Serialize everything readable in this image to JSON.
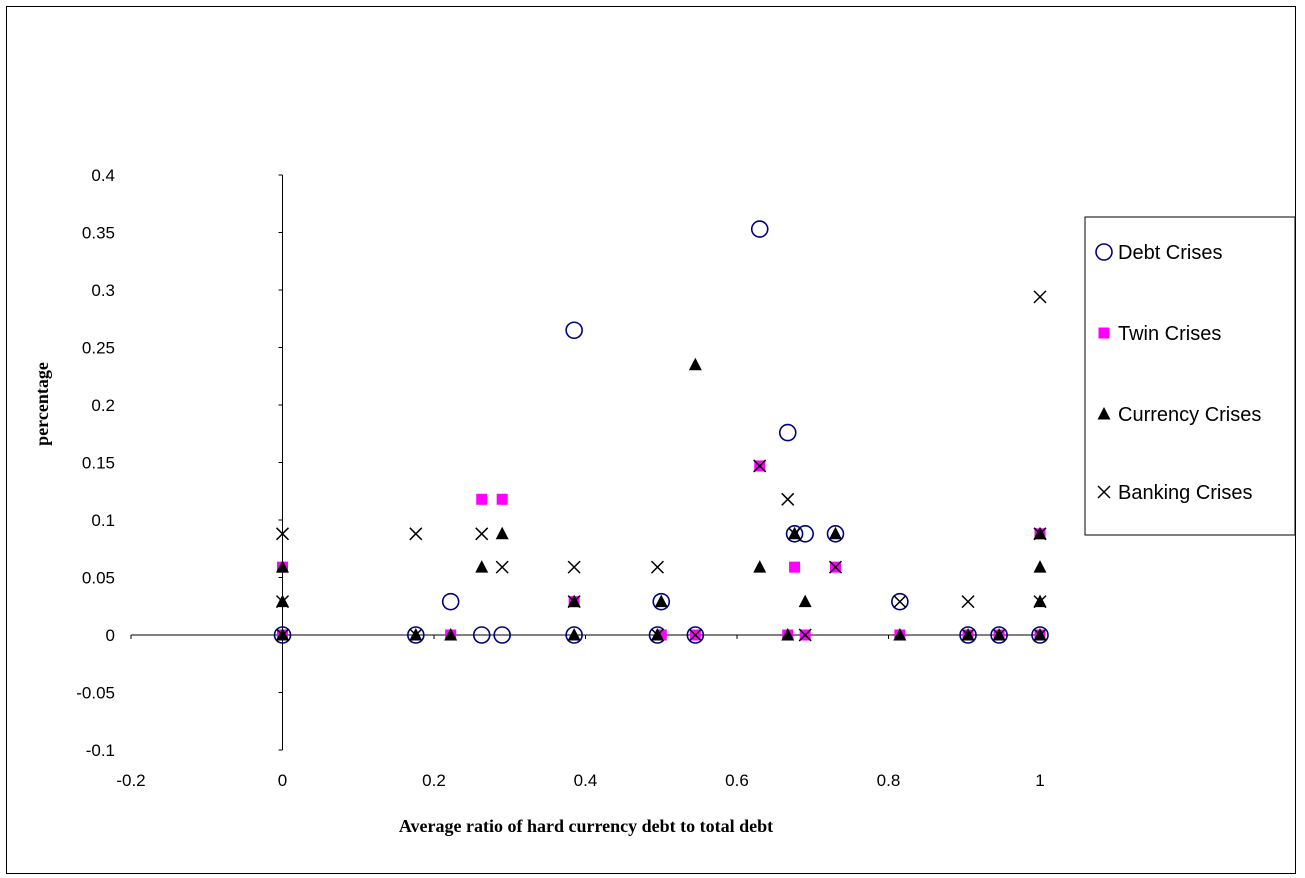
{
  "chart_data": {
    "type": "scatter",
    "title": "",
    "xlabel": "Average ratio of hard currency debt to total debt",
    "ylabel": "percentage",
    "xlim": [
      -0.2,
      1.0
    ],
    "ylim": [
      -0.1,
      0.4
    ],
    "x_ticks": [
      "-0.2",
      "0",
      "0.2",
      "0.4",
      "0.6",
      "0.8",
      "1"
    ],
    "y_ticks": [
      "0.4",
      "0.35",
      "0.3",
      "0.25",
      "0.2",
      "0.15",
      "0.1",
      "0.05",
      "0",
      "-0.05",
      "-0.1"
    ],
    "grid": false,
    "legend_position": "right",
    "series": [
      {
        "name": "Debt Crises",
        "marker": "open-circle",
        "color": "#000080",
        "points": [
          [
            0,
            0
          ],
          [
            0.176,
            0
          ],
          [
            0.222,
            0.029
          ],
          [
            0.263,
            0
          ],
          [
            0.29,
            0
          ],
          [
            0.385,
            0.265
          ],
          [
            0.385,
            0
          ],
          [
            0.495,
            0
          ],
          [
            0.5,
            0.029
          ],
          [
            0.545,
            0
          ],
          [
            0.63,
            0.353
          ],
          [
            0.667,
            0.176
          ],
          [
            0.676,
            0.088
          ],
          [
            0.69,
            0.088
          ],
          [
            0.73,
            0.088
          ],
          [
            0.815,
            0.029
          ],
          [
            0.905,
            0
          ],
          [
            0.946,
            0
          ],
          [
            1.0,
            0
          ]
        ]
      },
      {
        "name": "Twin Crises",
        "marker": "filled-square",
        "color": "#ff00ff",
        "points": [
          [
            0,
            0.059
          ],
          [
            0,
            0
          ],
          [
            0.222,
            0
          ],
          [
            0.263,
            0.118
          ],
          [
            0.29,
            0.118
          ],
          [
            0.385,
            0.029
          ],
          [
            0.5,
            0
          ],
          [
            0.545,
            0
          ],
          [
            0.63,
            0.147
          ],
          [
            0.667,
            0
          ],
          [
            0.676,
            0.059
          ],
          [
            0.69,
            0
          ],
          [
            0.73,
            0.059
          ],
          [
            0.815,
            0
          ],
          [
            0.905,
            0
          ],
          [
            0.946,
            0
          ],
          [
            1.0,
            0.088
          ],
          [
            1.0,
            0
          ]
        ]
      },
      {
        "name": "Currency Crises",
        "marker": "filled-triangle",
        "color": "#000000",
        "points": [
          [
            0,
            0.059
          ],
          [
            0,
            0.029
          ],
          [
            0,
            0
          ],
          [
            0.176,
            0
          ],
          [
            0.222,
            0
          ],
          [
            0.263,
            0.059
          ],
          [
            0.29,
            0.088
          ],
          [
            0.385,
            0.029
          ],
          [
            0.385,
            0
          ],
          [
            0.495,
            0
          ],
          [
            0.5,
            0.029
          ],
          [
            0.545,
            0.235
          ],
          [
            0.63,
            0.059
          ],
          [
            0.667,
            0
          ],
          [
            0.676,
            0.088
          ],
          [
            0.69,
            0.029
          ],
          [
            0.73,
            0.088
          ],
          [
            0.815,
            0
          ],
          [
            0.905,
            0
          ],
          [
            0.946,
            0
          ],
          [
            1.0,
            0.088
          ],
          [
            1.0,
            0.059
          ],
          [
            1.0,
            0.029
          ],
          [
            1.0,
            0
          ]
        ]
      },
      {
        "name": "Banking Crises",
        "marker": "x",
        "color": "#000000",
        "points": [
          [
            0,
            0.088
          ],
          [
            0,
            0.029
          ],
          [
            0,
            0
          ],
          [
            0.176,
            0.088
          ],
          [
            0.176,
            0
          ],
          [
            0.263,
            0.088
          ],
          [
            0.29,
            0.059
          ],
          [
            0.385,
            0.059
          ],
          [
            0.385,
            0.029
          ],
          [
            0.495,
            0.059
          ],
          [
            0.495,
            0
          ],
          [
            0.545,
            0
          ],
          [
            0.63,
            0.147
          ],
          [
            0.667,
            0.118
          ],
          [
            0.676,
            0.088
          ],
          [
            0.69,
            0
          ],
          [
            0.73,
            0.059
          ],
          [
            0.815,
            0.029
          ],
          [
            0.905,
            0.029
          ],
          [
            0.905,
            0
          ],
          [
            0.946,
            0
          ],
          [
            1.0,
            0.294
          ],
          [
            1.0,
            0.088
          ],
          [
            1.0,
            0.029
          ],
          [
            1.0,
            0
          ]
        ]
      }
    ]
  }
}
